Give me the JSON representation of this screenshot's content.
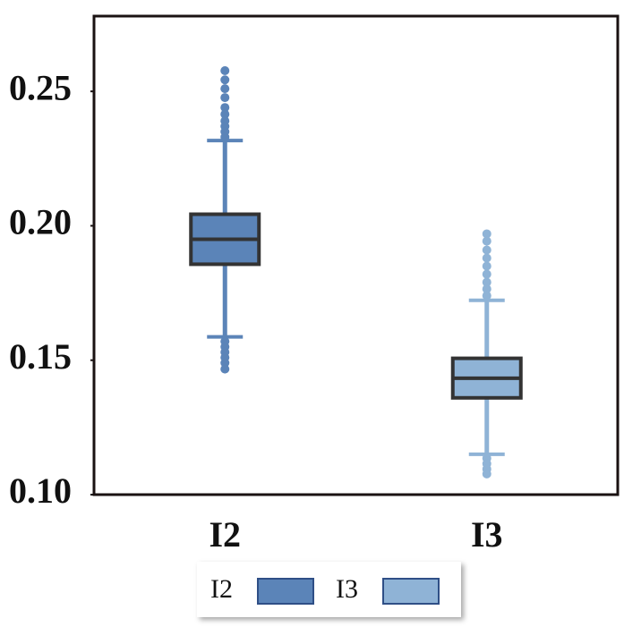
{
  "chart_data": {
    "type": "box",
    "categories": [
      "I2",
      "I3"
    ],
    "series": [
      {
        "name": "I2",
        "color": "#5b84b8",
        "min": 0.1587,
        "q1": 0.1857,
        "median": 0.195,
        "q3": 0.2043,
        "max": 0.2317,
        "outliers": [
          0.2577,
          0.2543,
          0.251,
          0.2477,
          0.244,
          0.2415,
          0.239,
          0.237,
          0.235,
          0.233,
          0.157,
          0.155,
          0.153,
          0.151,
          0.149,
          0.1467
        ]
      },
      {
        "name": "I3",
        "color": "#8fb3d6",
        "min": 0.115,
        "q1": 0.136,
        "median": 0.1433,
        "q3": 0.1507,
        "max": 0.1723,
        "outliers": [
          0.197,
          0.1943,
          0.191,
          0.188,
          0.185,
          0.182,
          0.179,
          0.1765,
          0.174,
          0.1135,
          0.1115,
          0.1095,
          0.1077
        ]
      }
    ],
    "ylim": [
      0.1,
      0.278
    ],
    "yticks": [
      {
        "value": 0.1,
        "label": "0.10"
      },
      0.15,
      {
        "value": 0.2,
        "label": "0.20"
      },
      0.25
    ],
    "grid": false
  }
}
